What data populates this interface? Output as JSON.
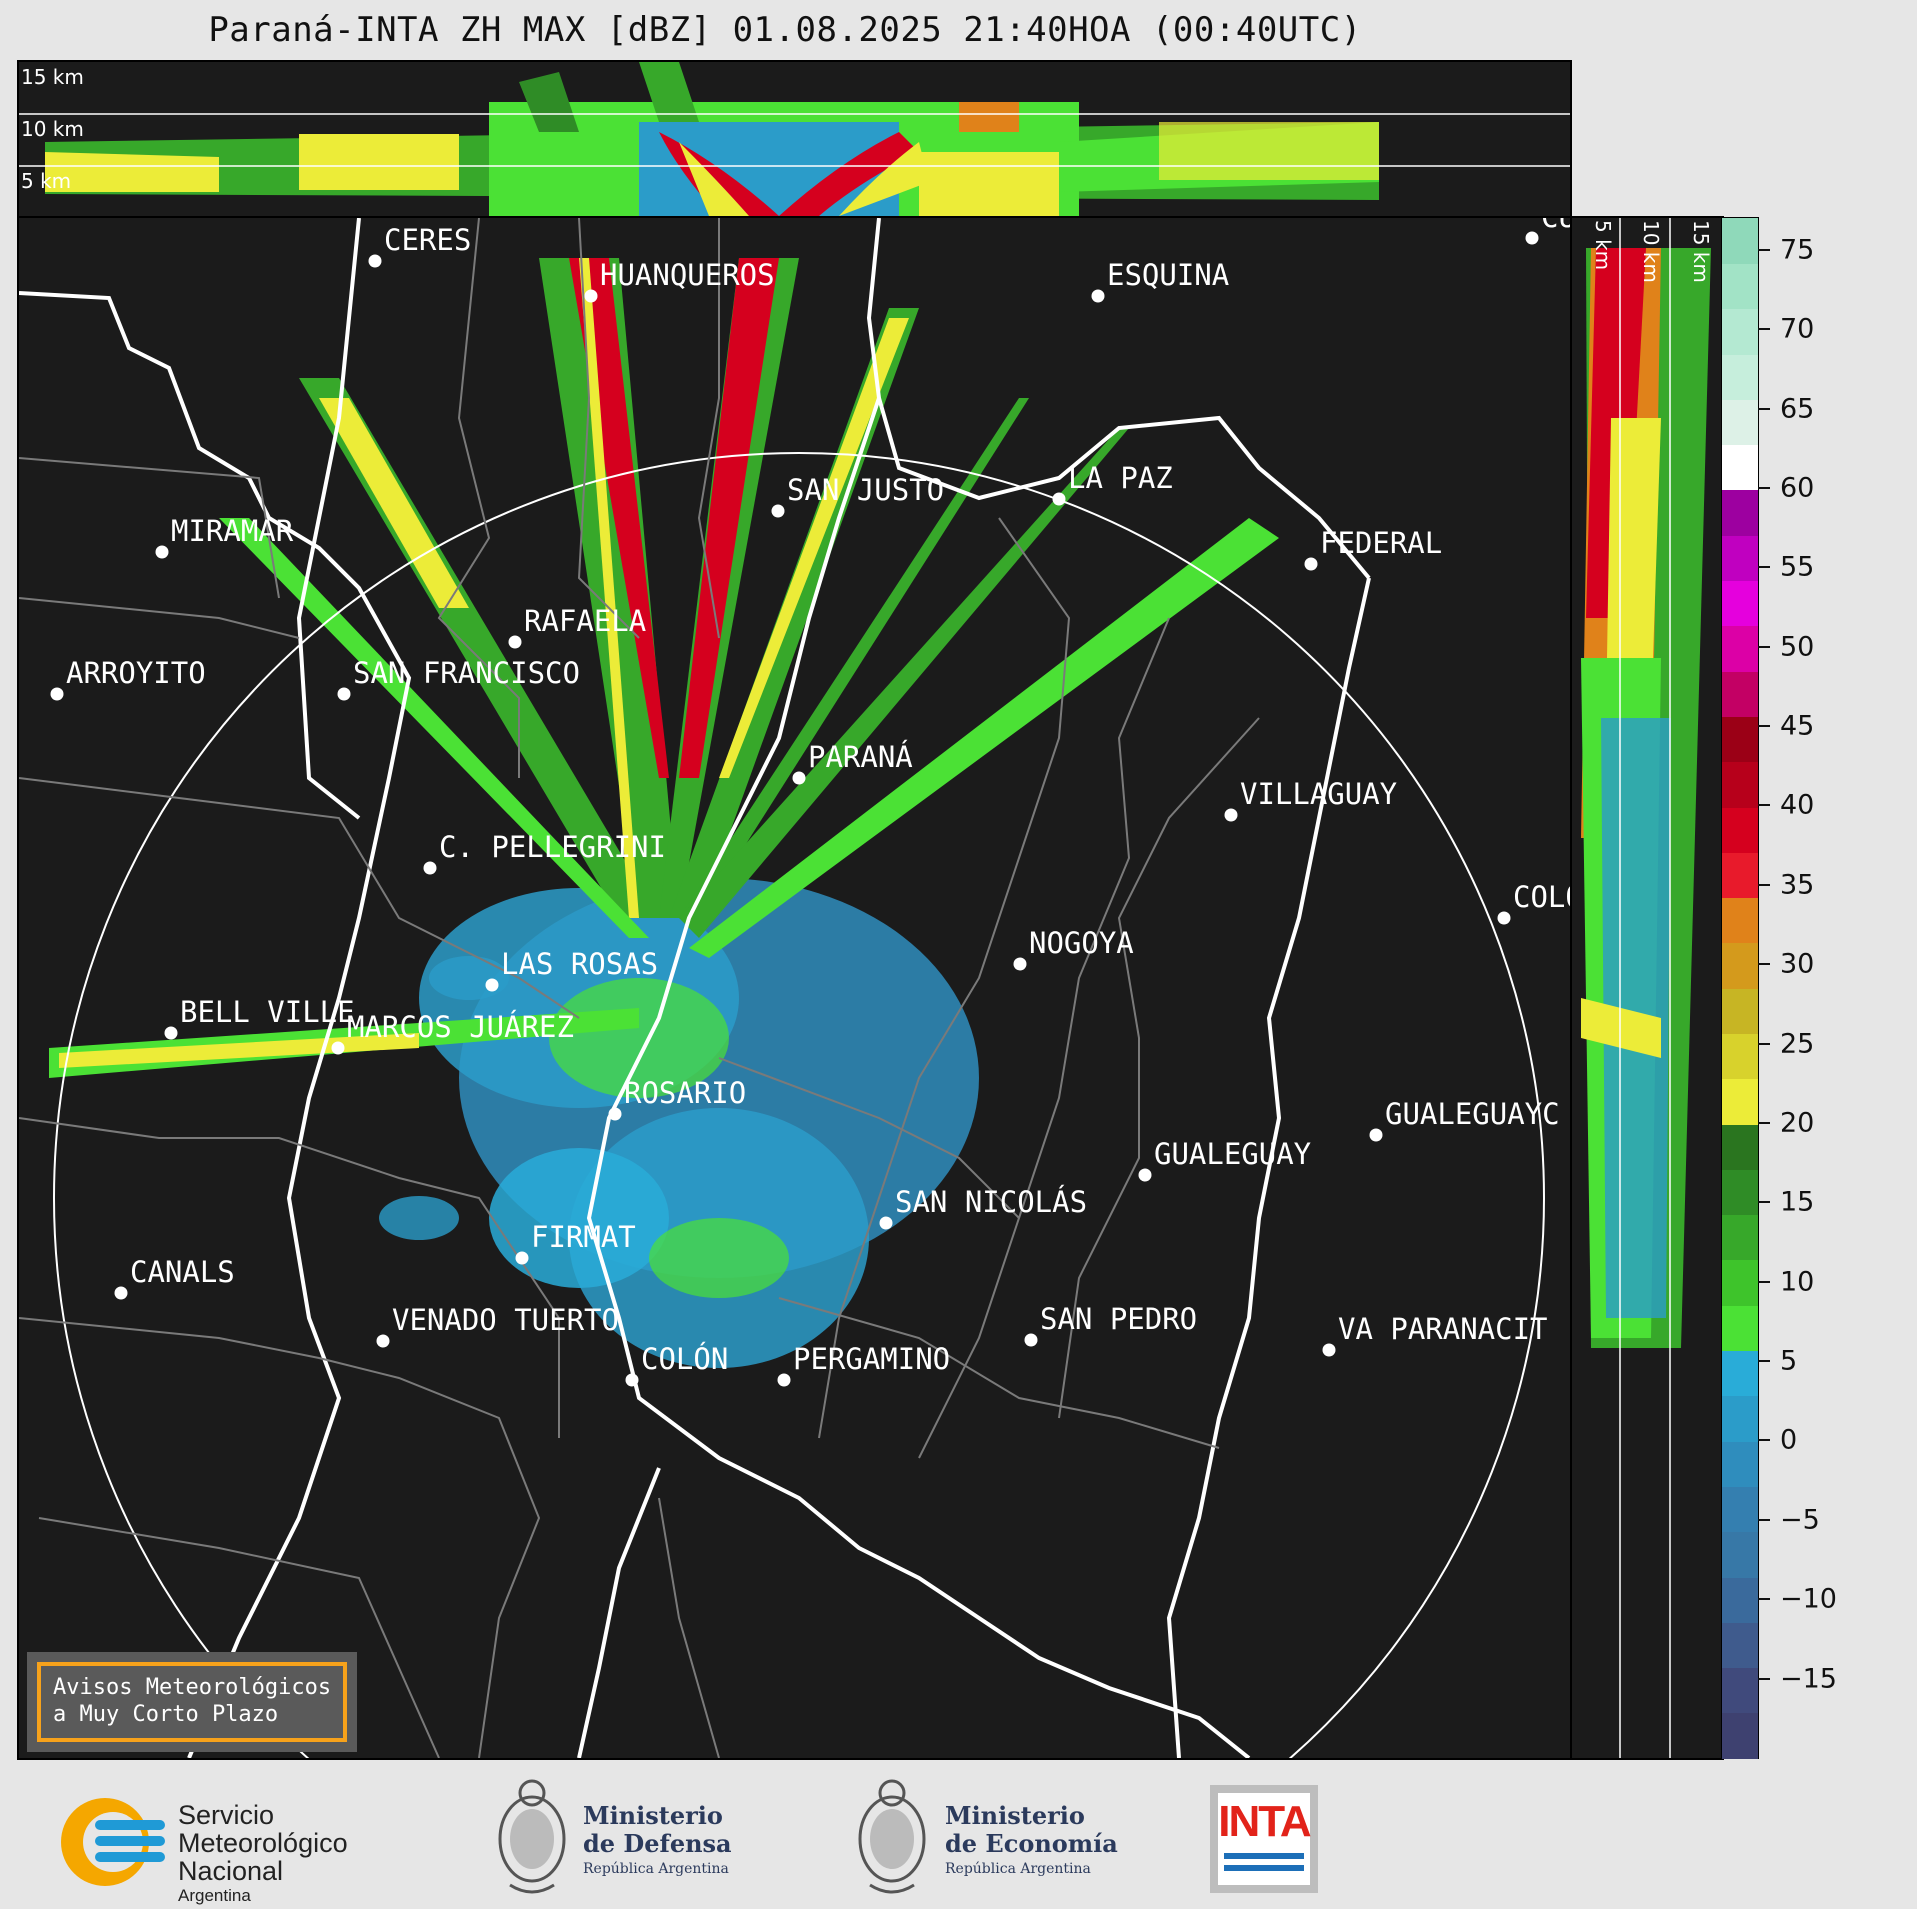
{
  "title": "Paraná-INTA ZH MAX [dBZ] 01.08.2025 21:40HOA (00:40UTC)",
  "altitude_labels": {
    "l15": "15 km",
    "l10": "10 km",
    "l5": "5 km"
  },
  "colorbar": {
    "ticks": [
      "75",
      "70",
      "65",
      "60",
      "55",
      "50",
      "45",
      "40",
      "35",
      "30",
      "25",
      "20",
      "15",
      "10",
      "5",
      "0",
      "−5",
      "−10",
      "−15"
    ],
    "range": [
      -20,
      77
    ],
    "colors": [
      "#3e4170",
      "#404a7c",
      "#3f5b8d",
      "#3a6a9c",
      "#3778a7",
      "#347fb0",
      "#2f8dbd",
      "#2b9cc9",
      "#29acd8",
      "#4be135",
      "#3ec42b",
      "#37a82a",
      "#2f8c26",
      "#2a751f",
      "#ecec38",
      "#d8d22c",
      "#c7b524",
      "#d49a1c",
      "#e0821a",
      "#e81a2b",
      "#d5001e",
      "#b7001b",
      "#9b0016",
      "#c30064",
      "#dc00a6",
      "#e500dd",
      "#c000c0",
      "#9d00a0",
      "#ffffff",
      "#ddf1e7",
      "#c6eedc",
      "#b4e9d2",
      "#a2e3c6",
      "#8fd9ba"
    ]
  },
  "cities": [
    {
      "name": "CERES"
    },
    {
      "name": "HUANQUEROS"
    },
    {
      "name": "ESQUINA"
    },
    {
      "name": "CU"
    },
    {
      "name": "SAN JUSTO"
    },
    {
      "name": "LA PAZ"
    },
    {
      "name": "MIRAMAR"
    },
    {
      "name": "FEDERAL"
    },
    {
      "name": "RAFAELA"
    },
    {
      "name": "ARROYITO"
    },
    {
      "name": "SAN FRANCISCO"
    },
    {
      "name": "PARANÁ"
    },
    {
      "name": "VILLAGUAY"
    },
    {
      "name": "C. PELLEGRINI"
    },
    {
      "name": "COLÓ"
    },
    {
      "name": "NOGOYA"
    },
    {
      "name": "LAS ROSAS"
    },
    {
      "name": "BELL VILLE"
    },
    {
      "name": "MARCOS JUÁREZ"
    },
    {
      "name": "ROSARIO"
    },
    {
      "name": "GUALEGUAYC"
    },
    {
      "name": "GUALEGUAY"
    },
    {
      "name": "SAN NICOLÁS"
    },
    {
      "name": "FIRMAT"
    },
    {
      "name": "CANALS"
    },
    {
      "name": "SAN PEDRO"
    },
    {
      "name": "VENADO TUERTO"
    },
    {
      "name": "VA PARANACIT"
    },
    {
      "name": "COLÓN"
    },
    {
      "name": "PERGAMINO"
    }
  ],
  "warning": {
    "text": "Avisos Meteorológicos\na Muy Corto Plazo"
  },
  "logos": {
    "smn": {
      "line1": "Servicio",
      "line2": "Meteorológico",
      "line3": "Nacional",
      "line4": "Argentina"
    },
    "defensa": {
      "line1": "Ministerio",
      "line2": "de Defensa",
      "line3": "República Argentina"
    },
    "economia": {
      "line1": "Ministerio",
      "line2": "de Economía",
      "line3": "República Argentina"
    },
    "inta": {
      "text": "INTA"
    }
  }
}
